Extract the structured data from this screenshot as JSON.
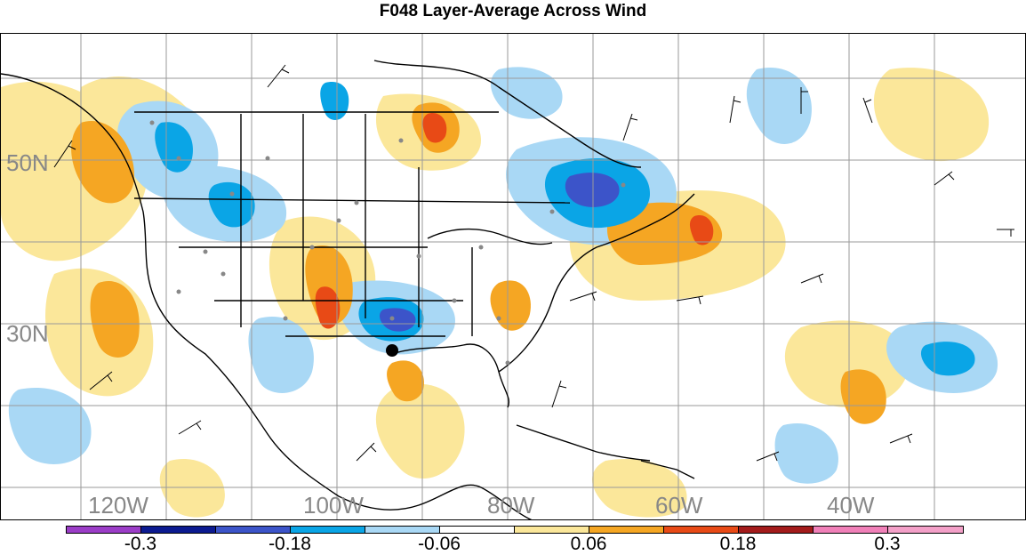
{
  "title": "F048 Layer-Average Across Wind",
  "map": {
    "lat_labels": [
      "50N",
      "30N"
    ],
    "lon_labels": [
      "120W",
      "100W",
      "80W",
      "60W",
      "40W"
    ],
    "marker": "observation-station-dot"
  },
  "colorbar": {
    "colors": [
      "#9b3dc7",
      "#0c1a90",
      "#3c54c9",
      "#0aa5e6",
      "#a9d8f5",
      "#ffffff",
      "#fbe79a",
      "#f5a623",
      "#e84a16",
      "#a31b1b",
      "#f080b8",
      "#f3a0c8"
    ],
    "labels": [
      "-0.3",
      "-0.18",
      "-0.06",
      "0.06",
      "0.18",
      "0.3"
    ]
  }
}
